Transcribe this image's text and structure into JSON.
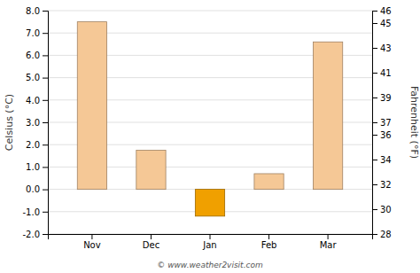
{
  "chart_data": {
    "type": "bar",
    "categories": [
      "Nov",
      "Dec",
      "Jan",
      "Feb",
      "Mar"
    ],
    "values": [
      7.5,
      1.75,
      -1.2,
      0.7,
      6.6
    ],
    "colors": [
      "#f5c896",
      "#f5c896",
      "#f0a000",
      "#f5c896",
      "#f5c896"
    ],
    "ylabel": "Celsius (°C)",
    "y2label": "Fahrenheit (°F)",
    "ylim": [
      -2.0,
      8.0
    ],
    "yticks": [
      {
        "value": -2.0,
        "label": "-2.0"
      },
      {
        "value": -1.0,
        "label": "-1.0"
      },
      {
        "value": 0.0,
        "label": "0.0"
      },
      {
        "value": 1.0,
        "label": "1.0"
      },
      {
        "value": 2.0,
        "label": "2.0"
      },
      {
        "value": 3.0,
        "label": "3.0"
      },
      {
        "value": 4.0,
        "label": "4.0"
      },
      {
        "value": 5.0,
        "label": "5.0"
      },
      {
        "value": 6.0,
        "label": "6.0"
      },
      {
        "value": 7.0,
        "label": "7.0"
      },
      {
        "value": 8.0,
        "label": "8.0"
      }
    ],
    "y2lim": [
      28,
      46
    ],
    "y2ticks": [
      28,
      30,
      32,
      34,
      36,
      37,
      39,
      41,
      43,
      45,
      46
    ],
    "grid": true,
    "annotations": [
      "© www.weather2visit.com"
    ]
  }
}
